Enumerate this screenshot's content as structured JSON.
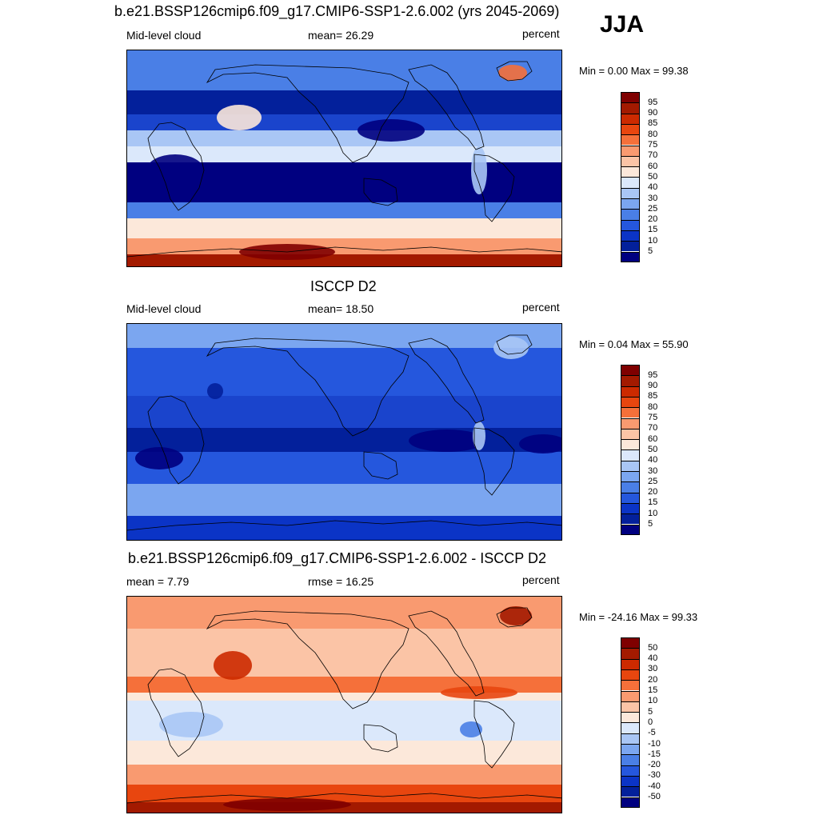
{
  "season_label": "JJA",
  "panels": [
    {
      "title": "b.e21.BSSP126cmip6.f09_g17.CMIP6-SSP1-2.6.002 (yrs 2045-2069)",
      "left_label": "Mid-level cloud",
      "center_label": "mean=  26.29",
      "right_label": "percent",
      "minmax": "Min =    0.00 Max =  99.38",
      "colorbar": {
        "labels": [
          "95",
          "90",
          "85",
          "80",
          "75",
          "70",
          "60",
          "50",
          "40",
          "30",
          "25",
          "20",
          "15",
          "10",
          "5"
        ],
        "colors": [
          "#7f0000",
          "#a31a00",
          "#cc2a00",
          "#e8460f",
          "#f5703a",
          "#f99a70",
          "#fbc4a6",
          "#fce8da",
          "#dbe8fb",
          "#a9c6f5",
          "#7ba6f0",
          "#4a7fe6",
          "#2557dd",
          "#0b34c6",
          "#03209b",
          "#000080"
        ]
      },
      "map_variant": "model"
    },
    {
      "title": "ISCCP D2",
      "left_label": "Mid-level cloud",
      "center_label": "mean=  18.50",
      "right_label": "percent",
      "minmax": "Min =    0.04 Max =  55.90",
      "colorbar": {
        "labels": [
          "95",
          "90",
          "85",
          "80",
          "75",
          "70",
          "60",
          "50",
          "40",
          "30",
          "25",
          "20",
          "15",
          "10",
          "5"
        ],
        "colors": [
          "#7f0000",
          "#a31a00",
          "#cc2a00",
          "#e8460f",
          "#f5703a",
          "#f99a70",
          "#fbc4a6",
          "#fce8da",
          "#dbe8fb",
          "#a9c6f5",
          "#7ba6f0",
          "#4a7fe6",
          "#2557dd",
          "#0b34c6",
          "#03209b",
          "#000080"
        ]
      },
      "map_variant": "obs"
    },
    {
      "title": "b.e21.BSSP126cmip6.f09_g17.CMIP6-SSP1-2.6.002 - ISCCP D2",
      "left_label": "mean =   7.79",
      "center_label": "rmse =  16.25",
      "right_label": "percent",
      "minmax": "Min = -24.16 Max =  99.33",
      "colorbar": {
        "labels": [
          "50",
          "40",
          "30",
          "20",
          "15",
          "10",
          "5",
          "0",
          "-5",
          "-10",
          "-15",
          "-20",
          "-30",
          "-40",
          "-50"
        ],
        "colors": [
          "#7f0000",
          "#a31a00",
          "#cc2a00",
          "#e8460f",
          "#f5703a",
          "#f99a70",
          "#fbc4a6",
          "#fce8da",
          "#dbe8fb",
          "#a9c6f5",
          "#7ba6f0",
          "#4a7fe6",
          "#2557dd",
          "#0b34c6",
          "#03209b",
          "#000080"
        ]
      },
      "map_variant": "diff"
    }
  ]
}
